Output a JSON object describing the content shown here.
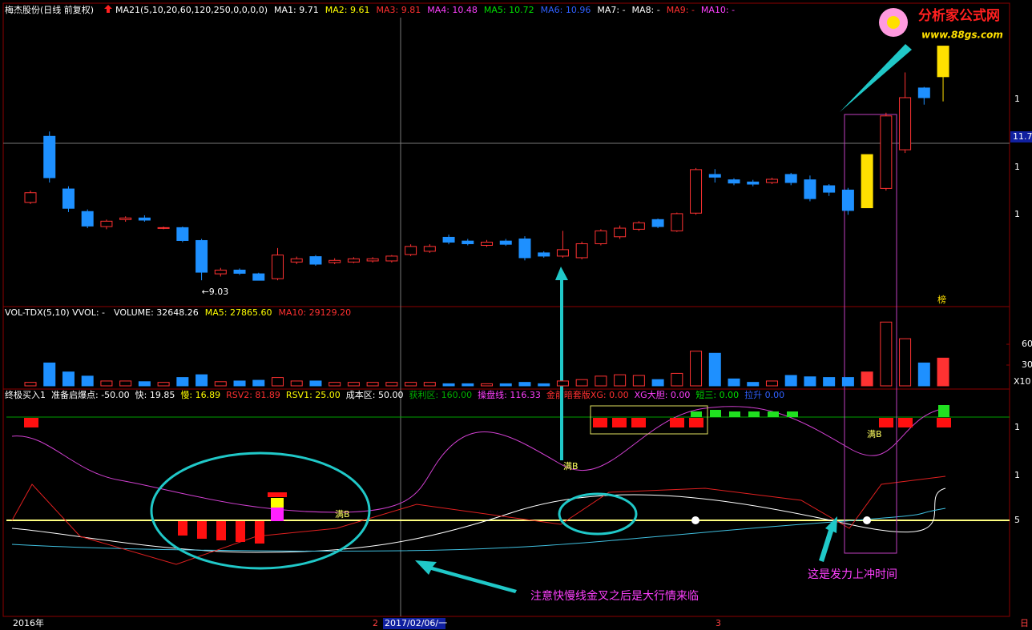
{
  "header": {
    "stock": "梅杰股份(日线 前复权)",
    "items": [
      {
        "text": "MA21(5,10,20,60,120,250,0,0,0,0)",
        "color": "#ffffff"
      },
      {
        "text": "MA1: 9.71",
        "color": "#ffffff"
      },
      {
        "text": "MA2: 9.61",
        "color": "#ffff00"
      },
      {
        "text": "MA3: 9.81",
        "color": "#ff3030"
      },
      {
        "text": "MA4: 10.48",
        "color": "#ff40ff"
      },
      {
        "text": "MA5: 10.72",
        "color": "#00e000"
      },
      {
        "text": "MA6: 10.96",
        "color": "#3060ff"
      },
      {
        "text": "MA7: -",
        "color": "#ffffff"
      },
      {
        "text": "MA8: -",
        "color": "#ffffff"
      },
      {
        "text": "MA9: -",
        "color": "#ff3030"
      },
      {
        "text": "MA10: -",
        "color": "#ff40ff"
      }
    ]
  },
  "chart_data": [
    {
      "type": "candlestick",
      "up_color": "#ff3232",
      "down_color": "#1e90ff",
      "open": [
        10.48,
        11.71,
        10.73,
        10.31,
        10.03,
        10.16,
        10.19,
        10.0,
        10.01,
        9.77,
        9.15,
        9.22,
        9.15,
        9.06,
        9.37,
        9.47,
        9.36,
        9.37,
        9.39,
        9.39,
        9.51,
        9.57,
        9.83,
        9.76,
        9.68,
        9.76,
        9.8,
        9.54,
        9.48,
        9.45,
        9.71,
        9.84,
        9.98,
        10.16,
        9.95,
        10.28,
        11.0,
        10.9,
        10.86,
        10.85,
        11.0,
        10.9,
        10.79,
        10.71,
        10.38,
        10.74,
        11.46,
        12.61,
        12.82
      ],
      "high": [
        10.7,
        11.8,
        10.78,
        10.35,
        10.16,
        10.22,
        10.24,
        10.03,
        10.03,
        9.8,
        9.26,
        9.25,
        9.17,
        9.63,
        9.47,
        9.5,
        9.44,
        9.46,
        9.46,
        9.5,
        9.7,
        9.7,
        9.88,
        9.8,
        9.78,
        9.8,
        9.85,
        9.57,
        9.95,
        9.75,
        9.98,
        10.05,
        10.13,
        10.18,
        10.29,
        11.12,
        11.1,
        10.93,
        10.9,
        10.94,
        11.03,
        10.98,
        10.82,
        10.75,
        11.37,
        12.15,
        12.9,
        12.63,
        13.39
      ],
      "low": [
        10.45,
        10.85,
        10.3,
        10.0,
        9.98,
        10.12,
        10.12,
        9.98,
        9.74,
        9.03,
        9.1,
        9.13,
        9.03,
        9.03,
        9.33,
        9.3,
        9.33,
        9.35,
        9.36,
        9.36,
        9.48,
        9.54,
        9.7,
        9.68,
        9.65,
        9.67,
        9.4,
        9.45,
        9.45,
        9.42,
        9.68,
        9.8,
        9.95,
        10.0,
        9.93,
        10.25,
        10.85,
        10.8,
        10.78,
        10.82,
        10.8,
        10.5,
        10.6,
        10.25,
        10.38,
        10.7,
        11.4,
        12.3,
        12.36
      ],
      "close": [
        10.66,
        10.94,
        10.37,
        10.04,
        10.13,
        10.19,
        10.15,
        10.01,
        9.77,
        9.18,
        9.22,
        9.16,
        9.03,
        9.5,
        9.43,
        9.33,
        9.4,
        9.43,
        9.43,
        9.48,
        9.66,
        9.66,
        9.74,
        9.71,
        9.74,
        9.7,
        9.45,
        9.48,
        9.6,
        9.71,
        9.95,
        10.0,
        10.1,
        10.03,
        10.27,
        11.09,
        10.95,
        10.84,
        10.82,
        10.91,
        10.85,
        10.55,
        10.67,
        10.33,
        11.37,
        12.09,
        12.43,
        12.43,
        13.39
      ],
      "highlight_color": "#ffe000",
      "highlight": [
        44,
        48
      ],
      "ylim": [
        8.54,
        13.95
      ],
      "yticks": [
        11.7
      ],
      "low_label": {
        "value": 9.03,
        "label": "←9.03"
      }
    },
    {
      "type": "bar",
      "title": "VOL-TDX(5,10) VVOL: -",
      "stats": [
        {
          "text": "VOLUME: 32648.26",
          "color": "#ffffff"
        },
        {
          "text": "MA5: 27865.60",
          "color": "#ffff00"
        },
        {
          "text": "MA10: 29129.20",
          "color": "#ff3030"
        }
      ],
      "values": [
        5,
        33,
        20,
        14,
        7,
        7,
        6,
        5,
        12,
        16,
        6,
        7,
        8,
        12,
        7,
        7,
        5,
        5,
        5,
        5,
        5,
        5,
        3,
        3,
        3,
        3,
        5,
        3,
        7,
        9,
        14,
        16,
        15,
        9,
        18,
        50,
        47,
        10,
        5,
        7,
        15,
        13,
        12,
        12,
        20,
        92,
        68,
        33,
        40
      ],
      "ylim": [
        0,
        112
      ],
      "yticks": [
        30,
        60
      ],
      "unit": "X10"
    }
  ],
  "indicator": {
    "items": [
      {
        "text": "终极买入1",
        "color": "#ffffff"
      },
      {
        "text": "准备启爆点: -50.00",
        "color": "#ffffff"
      },
      {
        "text": "快: 19.85",
        "color": "#ffffff"
      },
      {
        "text": "慢: 16.89",
        "color": "#ffff00"
      },
      {
        "text": "RSV2: 81.89",
        "color": "#ff3030"
      },
      {
        "text": "RSV1: 25.00",
        "color": "#ffff00"
      },
      {
        "text": "成本区: 50.00",
        "color": "#ffffff"
      },
      {
        "text": "获利区: 160.00",
        "color": "#00b000"
      },
      {
        "text": "操盘线: 116.33",
        "color": "#ff40ff"
      },
      {
        "text": "金前暗套版XG: 0.00",
        "color": "#ff3030"
      },
      {
        "text": "XG大胆: 0.00",
        "color": "#ff40ff"
      },
      {
        "text": "短三: 0.00",
        "color": "#00e000"
      },
      {
        "text": "拉升 0.00",
        "color": "#3060ff"
      }
    ],
    "axis": [
      "1",
      "1",
      "5"
    ]
  },
  "annotations": {
    "man_b": [
      "满B",
      "满B",
      "满B"
    ],
    "note1": "注意快慢线金叉之后是大行情来临",
    "note2": "这是发力上冲时间",
    "bang": "榜"
  },
  "price_axis_fragments": [
    "1",
    "1",
    "1"
  ],
  "time_axis": {
    "start": "2016年",
    "m2": "2",
    "cursor": "2017/02/06/一",
    "m3": "3",
    "mode": "日"
  },
  "logo": {
    "name": "分析家公式网",
    "url": "www.88gs.com"
  }
}
